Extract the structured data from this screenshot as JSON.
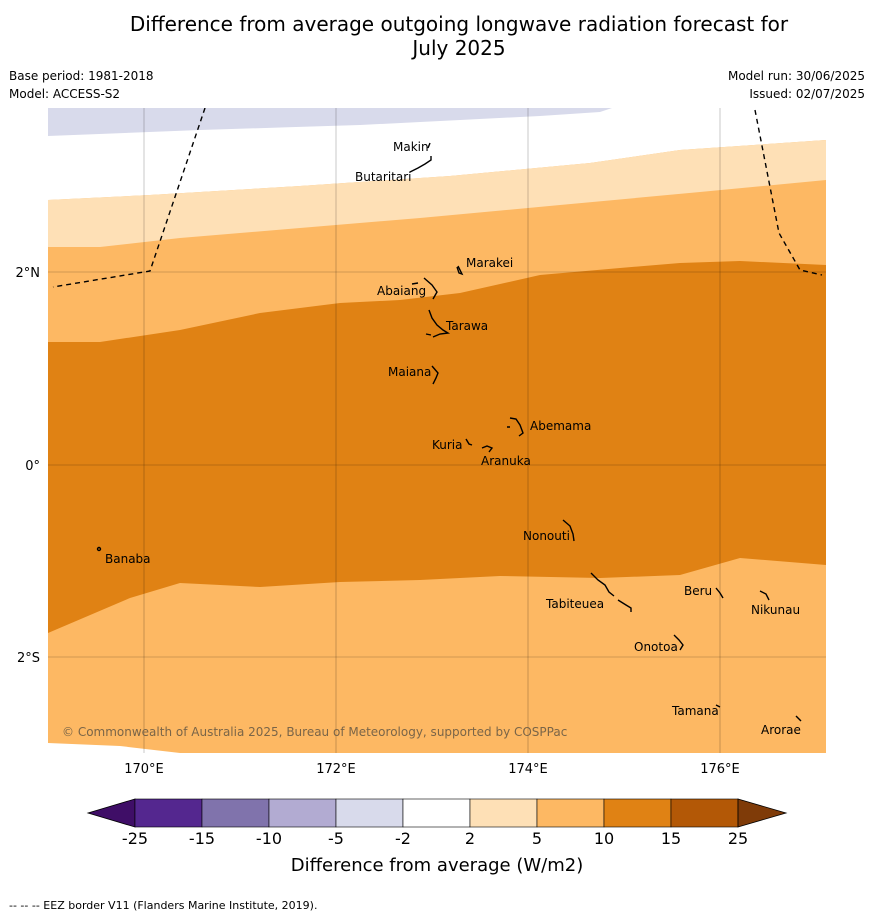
{
  "header": {
    "title_line1": "Difference from average outgoing longwave radiation forecast for",
    "title_line2": "July 2025",
    "base_period": "Base period: 1981-2018",
    "model": "Model: ACCESS-S2",
    "model_run": "Model run: 30/06/2025",
    "issued": "Issued: 02/07/2025"
  },
  "map": {
    "copyright": "© Commonwealth of Australia 2025, Bureau of Meteorology, supported by COSPPac",
    "lat_labels": [
      "2°N",
      "0°",
      "2°S"
    ],
    "lon_labels": [
      "170°E",
      "172°E",
      "174°E",
      "176°E"
    ],
    "islands": [
      {
        "name": "Makin"
      },
      {
        "name": "Butaritari"
      },
      {
        "name": "Marakei"
      },
      {
        "name": "Abaiang"
      },
      {
        "name": "Tarawa"
      },
      {
        "name": "Maiana"
      },
      {
        "name": "Abemama"
      },
      {
        "name": "Kuria"
      },
      {
        "name": "Aranuka"
      },
      {
        "name": "Nonouti"
      },
      {
        "name": "Banaba"
      },
      {
        "name": "Beru"
      },
      {
        "name": "Tabiteuea"
      },
      {
        "name": "Nikunau"
      },
      {
        "name": "Onotoa"
      },
      {
        "name": "Tamana"
      },
      {
        "name": "Arorae"
      }
    ]
  },
  "colorbar": {
    "title": "Difference from average (W/m2)",
    "ticks": [
      "-25",
      "-15",
      "-10",
      "-5",
      "-2",
      "2",
      "5",
      "10",
      "15",
      "25"
    ],
    "colors": [
      "#3f0e67",
      "#54278f",
      "#8073ac",
      "#b2abd2",
      "#d8daeb",
      "#ffffff",
      "#fee0b6",
      "#fdb863",
      "#e08214",
      "#b35806",
      "#7f3b08"
    ]
  },
  "footer": "--  --  -- EEZ border V11 (Flanders Marine Institute, 2019)."
}
